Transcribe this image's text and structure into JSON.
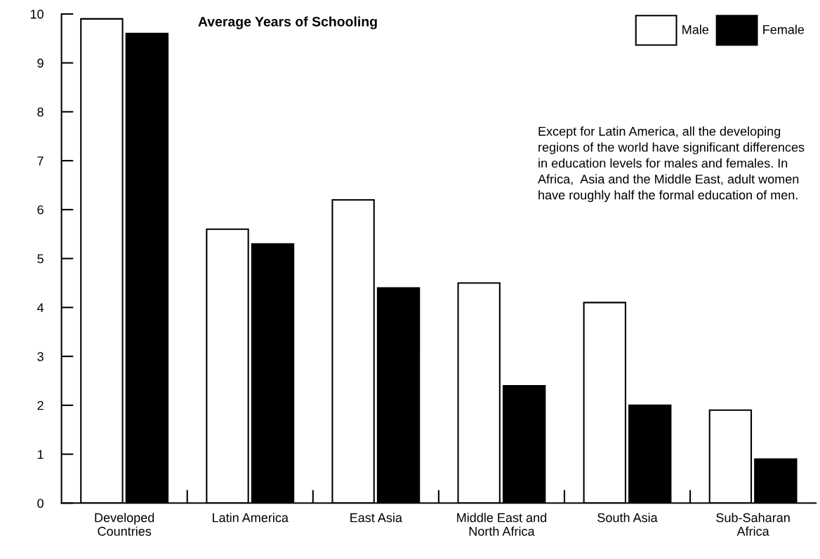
{
  "chart_data": {
    "type": "bar",
    "title": "Average Years of Schooling",
    "categories": [
      "Developed\nCountries",
      "Latin America",
      "East Asia",
      "Middle East and\nNorth Africa",
      "South Asia",
      "Sub-Saharan\nAfrica"
    ],
    "series": [
      {
        "name": "Male",
        "color": "#ffffff",
        "values": [
          9.9,
          5.6,
          6.2,
          4.5,
          4.1,
          1.9
        ]
      },
      {
        "name": "Female",
        "color": "#000000",
        "values": [
          9.6,
          5.3,
          4.4,
          2.4,
          2.0,
          0.9
        ]
      }
    ],
    "ylim": [
      0,
      10
    ],
    "yticks": [
      0,
      1,
      2,
      3,
      4,
      5,
      6,
      7,
      8,
      9,
      10
    ],
    "annotations": [
      "Except for Latin America, all the developing\nregions of the world have significant differences\nin education levels for males and females. In\nAfrica,  Asia and the Middle East, adult women\nhave roughly half the formal education of men."
    ],
    "legend": "top right",
    "grid": false
  }
}
